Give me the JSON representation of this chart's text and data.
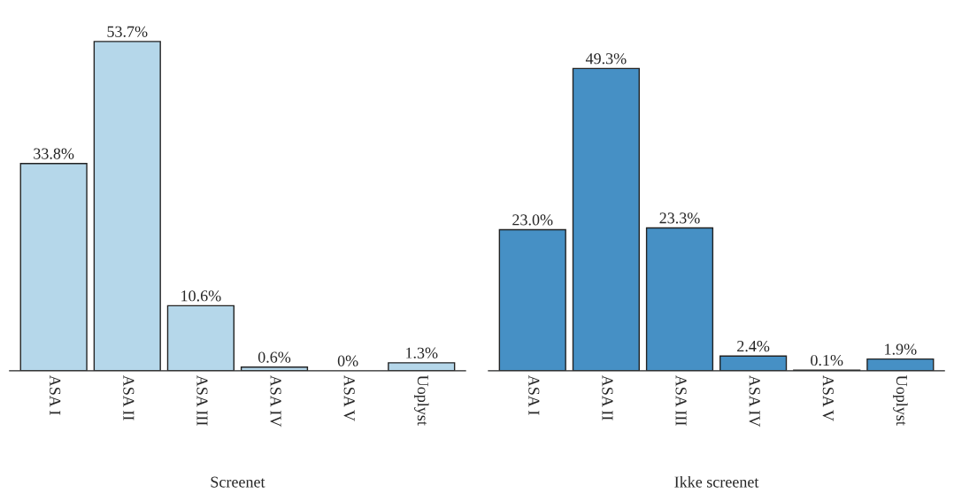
{
  "chart_data": [
    {
      "type": "bar",
      "xlabel": "Screenet",
      "categories": [
        "ASA I",
        "ASA II",
        "ASA III",
        "ASA IV",
        "ASA V",
        "Uoplyst"
      ],
      "values": [
        33.8,
        53.7,
        10.6,
        0.6,
        0,
        1.3
      ],
      "color": "#b5d7ea",
      "value_labels": [
        "33.8%",
        "53.7%",
        "10.6%",
        "0.6%",
        "0%",
        "1.3%"
      ],
      "tick_labels": "x",
      "grid": false,
      "legend": false
    },
    {
      "type": "bar",
      "xlabel": "Ikke screenet",
      "categories": [
        "ASA I",
        "ASA II",
        "ASA III",
        "ASA IV",
        "ASA V",
        "Uoplyst"
      ],
      "values": [
        23.0,
        49.3,
        23.3,
        2.4,
        0.1,
        1.9
      ],
      "color": "#4690c5",
      "value_labels": [
        "23.0%",
        "49.3%",
        "23.3%",
        "2.4%",
        "0.1%",
        "1.9%"
      ],
      "tick_labels": "x",
      "grid": false,
      "legend": false
    }
  ]
}
